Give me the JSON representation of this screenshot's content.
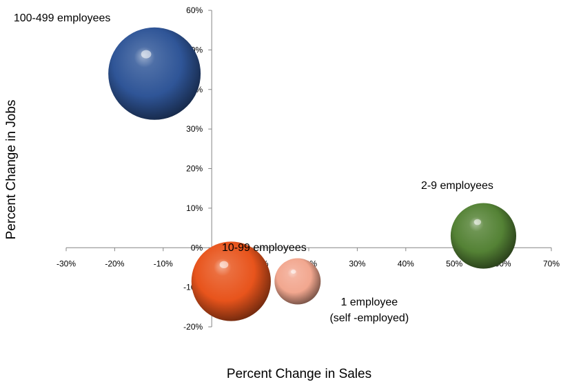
{
  "chart_data": {
    "type": "bubble",
    "title": "",
    "xlabel": "Percent Change in Sales",
    "ylabel": "Percent Change in Jobs",
    "xlim": [
      -30,
      70
    ],
    "ylim": [
      -20,
      60
    ],
    "xticks": [
      -30,
      -20,
      -10,
      0,
      10,
      20,
      30,
      40,
      50,
      60,
      70
    ],
    "yticks": [
      -20,
      -10,
      0,
      10,
      20,
      30,
      40,
      50,
      60
    ],
    "xtick_labels": [
      "-30%",
      "-20%",
      "-10%",
      "0%",
      "10%",
      "20%",
      "30%",
      "40%",
      "50%",
      "60%",
      "70%"
    ],
    "ytick_labels": [
      "-20%",
      "-10%",
      "0%",
      "10%",
      "20%",
      "30%",
      "40%",
      "50%",
      "60%"
    ],
    "legend": "none",
    "grid": false,
    "series": [
      {
        "name": "100-499 employees",
        "x": -11.8,
        "y": 44,
        "size_ratio": 1.0,
        "color": "#2f5597"
      },
      {
        "name": "2-9 employees",
        "x": 56,
        "y": 3,
        "size_ratio": 0.71,
        "color": "#548235"
      },
      {
        "name": "10-99 employees",
        "x": 4,
        "y": -8.5,
        "size_ratio": 0.86,
        "color": "#e8541c"
      },
      {
        "name": "1 employee",
        "name_line2": "(self -employed)",
        "x": 17.7,
        "y": -8.5,
        "size_ratio": 0.5,
        "color": "#f2a78f"
      }
    ]
  }
}
